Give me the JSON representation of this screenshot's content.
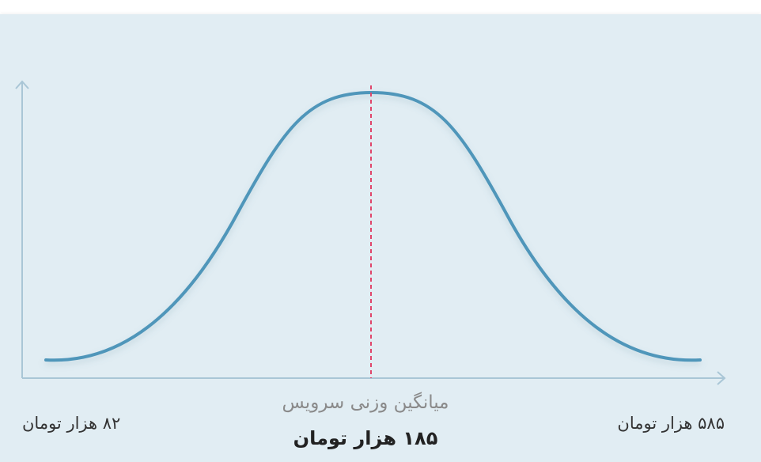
{
  "average_label": "میانگین وزنی سرویس",
  "average_value": "۱۸۵ هزار تومان",
  "min_label": "۸۲ هزار تومان",
  "max_label": "۵۸۵ هزار تومان"
}
